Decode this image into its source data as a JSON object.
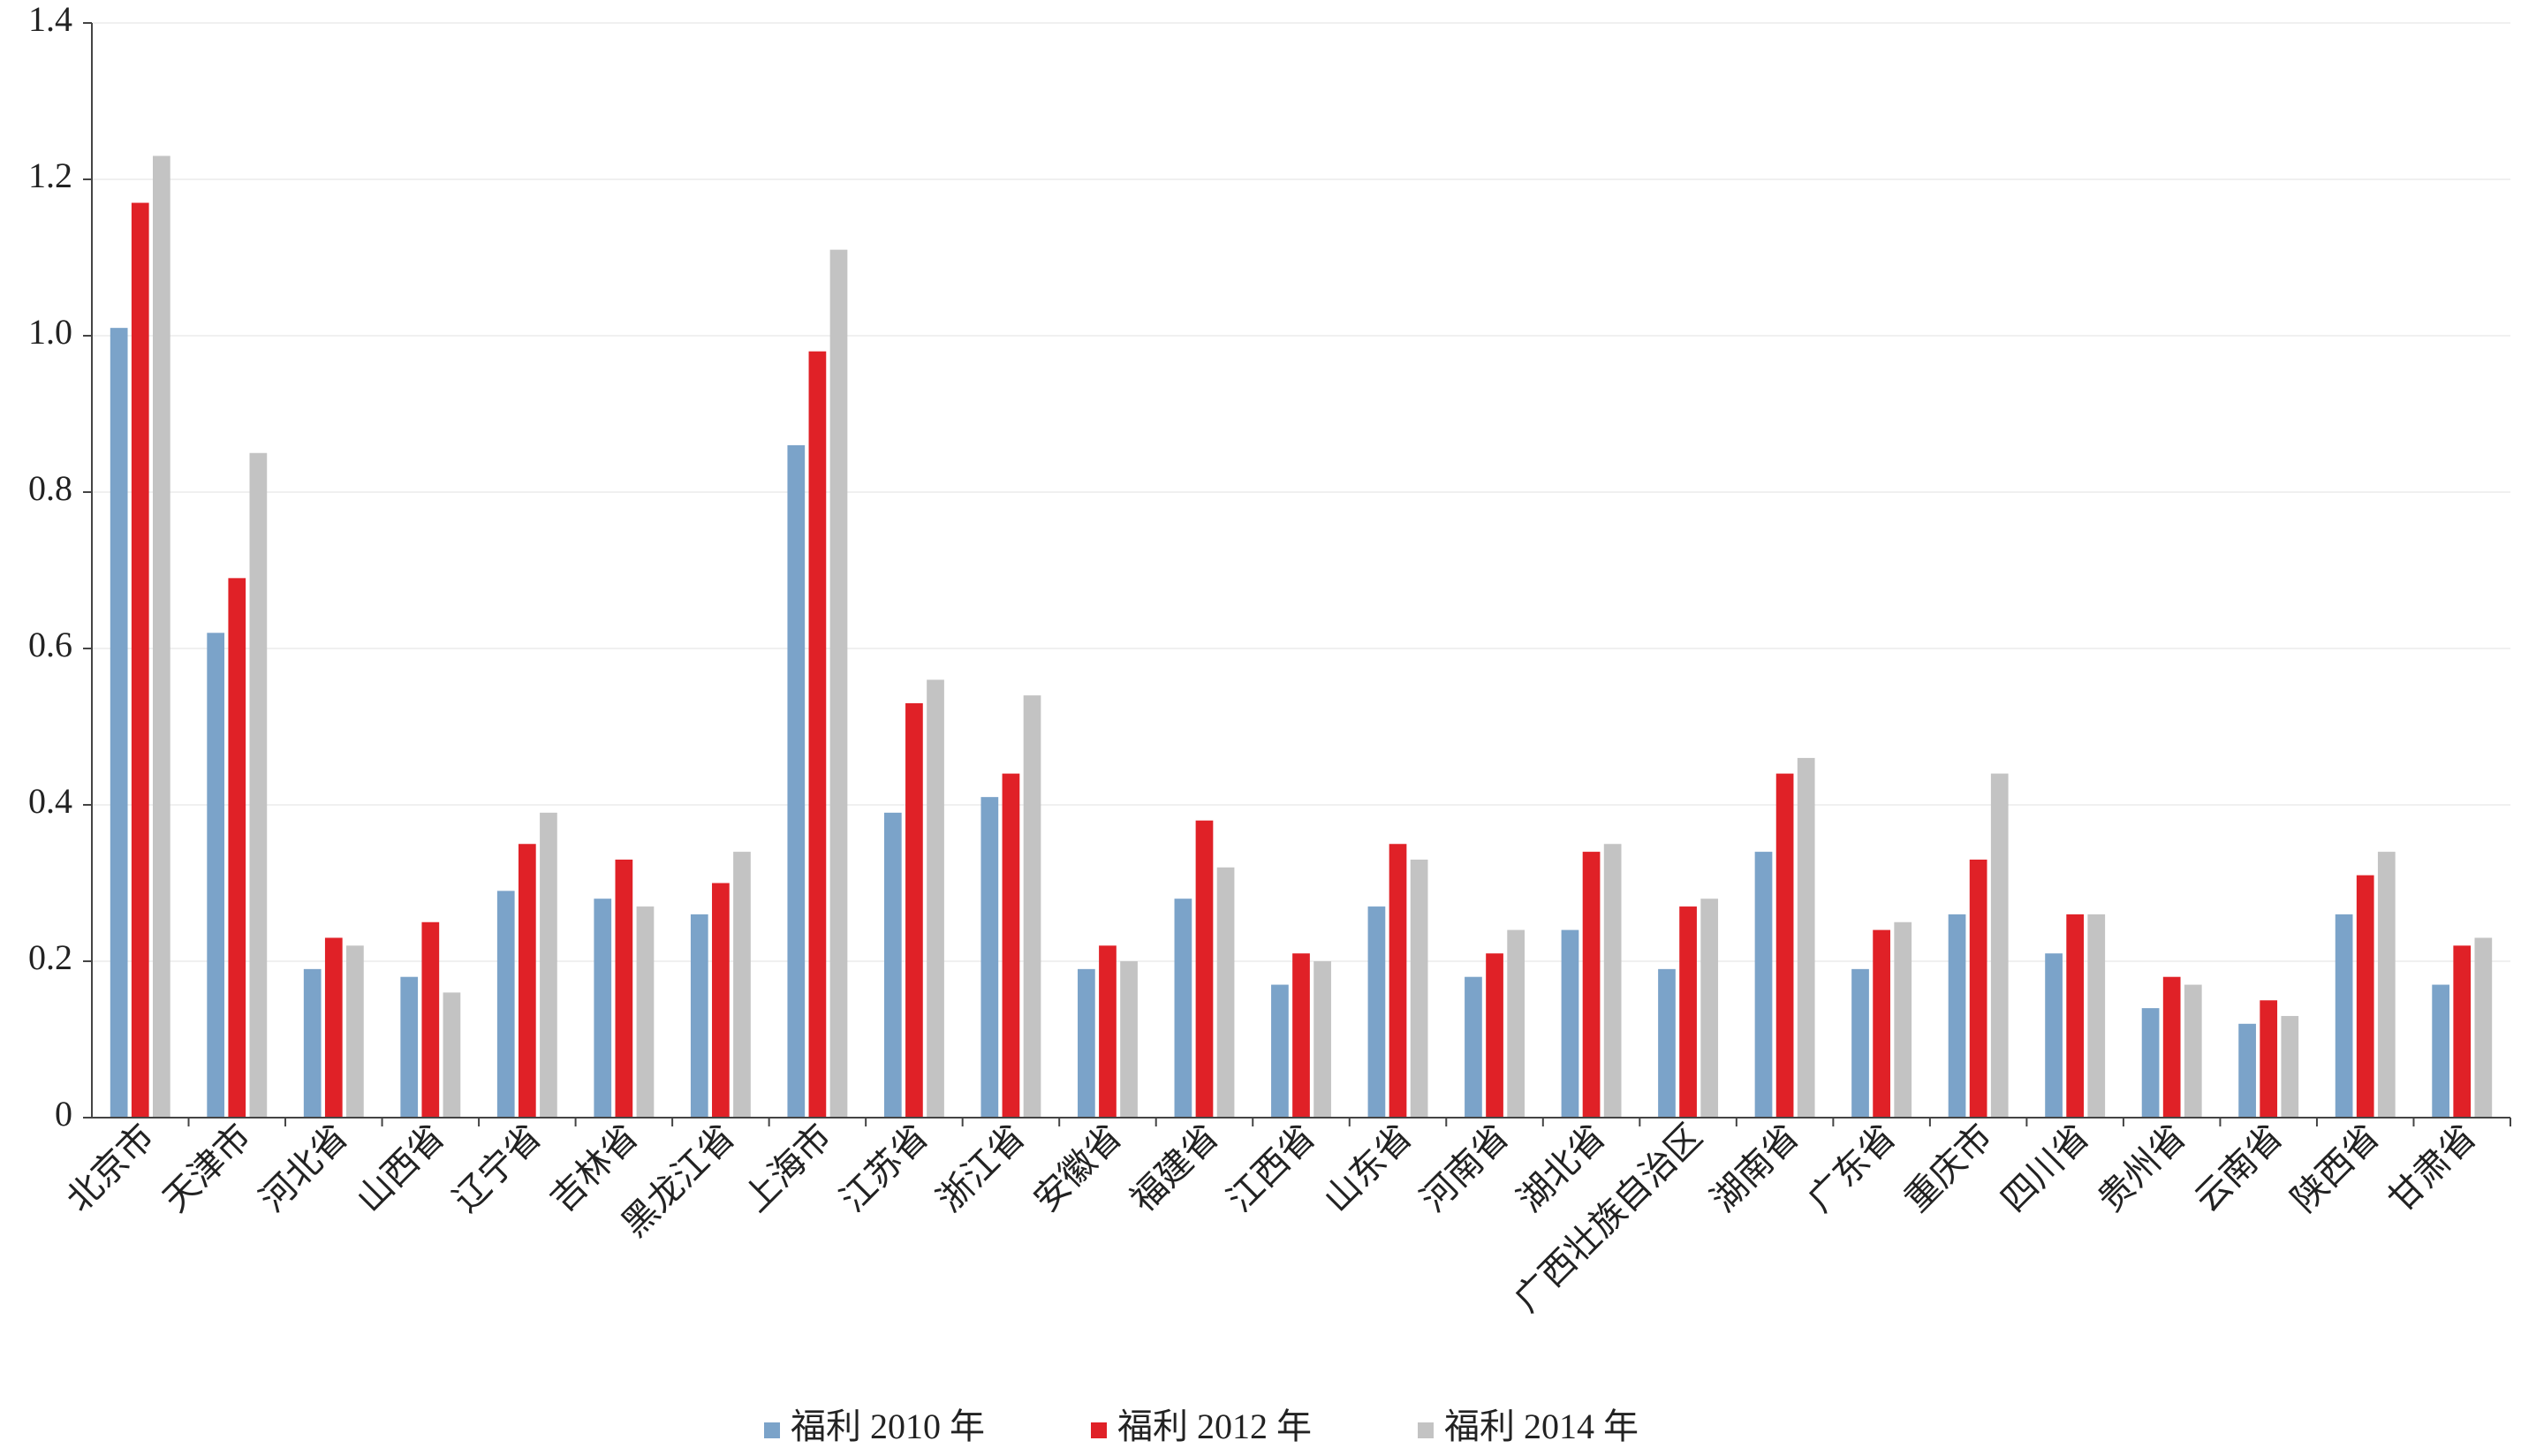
{
  "chart_data": {
    "type": "bar",
    "categories": [
      "北京市",
      "天津市",
      "河北省",
      "山西省",
      "辽宁省",
      "吉林省",
      "黑龙江省",
      "上海市",
      "江苏省",
      "浙江省",
      "安徽省",
      "福建省",
      "江西省",
      "山东省",
      "河南省",
      "湖北省",
      "广西壮族自治区",
      "湖南省",
      "广东省",
      "重庆市",
      "四川省",
      "贵州省",
      "云南省",
      "陕西省",
      "甘肃省"
    ],
    "series": [
      {
        "name": "福利 2010 年",
        "color": "#7ba3c9",
        "values": [
          1.01,
          0.62,
          0.19,
          0.18,
          0.29,
          0.28,
          0.26,
          0.86,
          0.39,
          0.41,
          0.19,
          0.28,
          0.17,
          0.27,
          0.18,
          0.24,
          0.19,
          0.34,
          0.19,
          0.26,
          0.21,
          0.14,
          0.12,
          0.26,
          0.17
        ]
      },
      {
        "name": "福利 2012 年",
        "color": "#e02127",
        "values": [
          1.17,
          0.69,
          0.23,
          0.25,
          0.35,
          0.33,
          0.3,
          0.98,
          0.53,
          0.44,
          0.22,
          0.38,
          0.21,
          0.35,
          0.21,
          0.34,
          0.27,
          0.44,
          0.24,
          0.33,
          0.26,
          0.18,
          0.15,
          0.31,
          0.22
        ]
      },
      {
        "name": "福利 2014 年",
        "color": "#c3c3c3",
        "values": [
          1.23,
          0.85,
          0.22,
          0.16,
          0.39,
          0.27,
          0.34,
          1.11,
          0.56,
          0.54,
          0.2,
          0.32,
          0.2,
          0.33,
          0.24,
          0.35,
          0.28,
          0.46,
          0.25,
          0.44,
          0.26,
          0.17,
          0.13,
          0.34,
          0.23
        ]
      }
    ],
    "ylim": [
      0,
      1.4
    ],
    "yticks": [
      0,
      0.2,
      0.4,
      0.6,
      0.8,
      {
        "value": 1,
        "label": "1.0"
      },
      1.2,
      1.4
    ],
    "grid": true,
    "legend": "bottom"
  }
}
